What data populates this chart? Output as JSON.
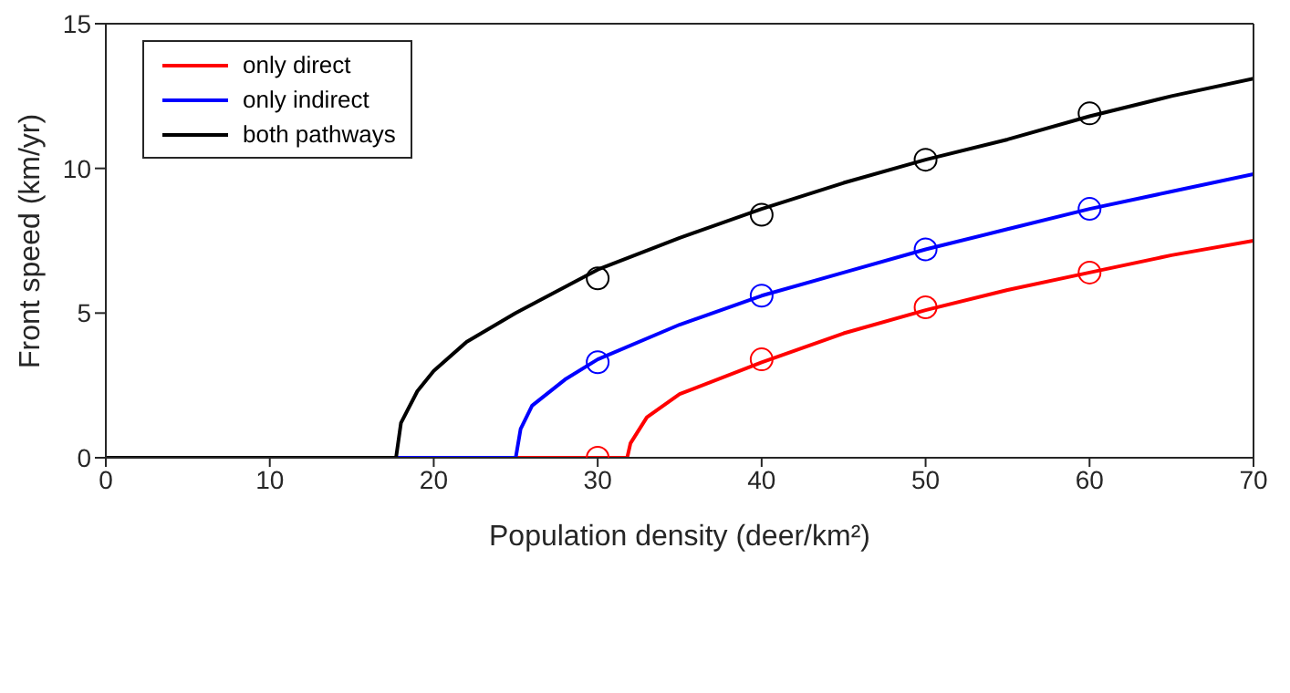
{
  "chart_data": {
    "type": "line",
    "xlabel": "Population density (deer/km²)",
    "ylabel": "Front speed (km/yr)",
    "xlim": [
      0,
      70
    ],
    "ylim": [
      0,
      15
    ],
    "xticks": [
      0,
      10,
      20,
      30,
      40,
      50,
      60,
      70
    ],
    "yticks": [
      0,
      5,
      10,
      15
    ],
    "legend": "top left",
    "marker": "none",
    "line_style": "solid",
    "series": [
      {
        "name": "only direct",
        "color": "#ff0000",
        "x": [
          0,
          31.8,
          32,
          33,
          35,
          40,
          45,
          50,
          55,
          60,
          65,
          70
        ],
        "values": [
          0,
          0,
          0.5,
          1.4,
          2.2,
          3.3,
          4.3,
          5.1,
          5.8,
          6.4,
          7.0,
          7.5
        ]
      },
      {
        "name": "only indirect",
        "color": "#0000ff",
        "x": [
          0,
          25,
          25.3,
          26,
          28,
          30,
          35,
          40,
          45,
          50,
          55,
          60,
          65,
          70
        ],
        "values": [
          0,
          0,
          1,
          1.8,
          2.7,
          3.4,
          4.6,
          5.6,
          6.4,
          7.2,
          7.9,
          8.6,
          9.2,
          9.8
        ]
      },
      {
        "name": "both pathways",
        "color": "#000000",
        "x": [
          0,
          17.7,
          18,
          19,
          20,
          22,
          25,
          30,
          35,
          40,
          45,
          50,
          55,
          60,
          65,
          70
        ],
        "values": [
          0,
          0,
          1.2,
          2.3,
          3.0,
          4.0,
          5.0,
          6.5,
          7.6,
          8.6,
          9.5,
          10.3,
          11.0,
          11.8,
          12.5,
          13.1
        ]
      },
      {
        "type": "scatter",
        "marker": "circle",
        "color": "#ff0000",
        "x": [
          30,
          40,
          50,
          60
        ],
        "values": [
          0,
          3.4,
          5.2,
          6.4
        ]
      },
      {
        "type": "scatter",
        "marker": "circle",
        "color": "#0000ff",
        "x": [
          30,
          40,
          50,
          60
        ],
        "values": [
          3.3,
          5.6,
          7.2,
          8.6
        ]
      },
      {
        "type": "scatter",
        "marker": "circle",
        "color": "#000000",
        "x": [
          30,
          40,
          50,
          60
        ],
        "values": [
          6.2,
          8.4,
          10.3,
          11.9
        ]
      }
    ]
  }
}
